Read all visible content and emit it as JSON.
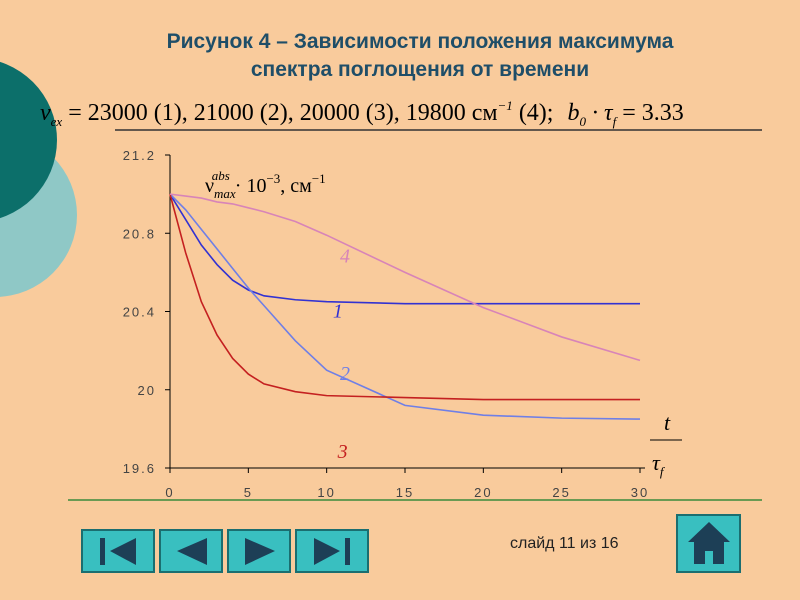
{
  "title_lines": [
    "Рисунок 4 – Зависимости положения максимума",
    "спектра поглощения от времени"
  ],
  "formula": {
    "lhs": "ν",
    "lhs_sub": "ex",
    "body": " = 23000 (1), 21000 (2), 20000 (3), 19800 см",
    "exp": "−1",
    "tail": " (4);",
    "b": "b",
    "b_sub": "0",
    "tau": " · τ",
    "tau_sub": "f",
    "rhs": " = 3.33"
  },
  "chart_data": {
    "type": "line",
    "y_label": {
      "symbol": "ν",
      "sub": "max",
      "sup": "abs",
      "factor": " · 10",
      "exp": "−3",
      "unit": ", см",
      "unit_exp": "−1"
    },
    "x_label": {
      "top": "t",
      "bottom": "τ",
      "bottom_sub": "f"
    },
    "x": [
      0,
      1,
      2,
      3,
      4,
      5,
      6,
      8,
      10,
      15,
      20,
      25,
      30
    ],
    "series": [
      {
        "name": "1",
        "color": "#3232d2",
        "values": [
          21.0,
          20.87,
          20.74,
          20.64,
          20.56,
          20.51,
          20.48,
          20.46,
          20.45,
          20.44,
          20.44,
          20.44,
          20.44
        ]
      },
      {
        "name": "2",
        "color": "#6f7fe6",
        "values": [
          21.0,
          20.92,
          20.82,
          20.72,
          20.62,
          20.52,
          20.43,
          20.25,
          20.1,
          19.92,
          19.87,
          19.855,
          19.85
        ]
      },
      {
        "name": "3",
        "color": "#c42020",
        "values": [
          21.0,
          20.7,
          20.45,
          20.28,
          20.16,
          20.08,
          20.03,
          19.99,
          19.97,
          19.96,
          19.95,
          19.95,
          19.95
        ]
      },
      {
        "name": "4",
        "color": "#d884b8",
        "values": [
          21.0,
          20.99,
          20.98,
          20.96,
          20.95,
          20.93,
          20.91,
          20.86,
          20.79,
          20.6,
          20.42,
          20.27,
          20.15
        ]
      }
    ],
    "xlim": [
      0,
      30
    ],
    "xticks": [
      0,
      5,
      10,
      15,
      20,
      25,
      30
    ],
    "ylim": [
      19.6,
      21.2
    ],
    "yticks": [
      19.6,
      20,
      20.4,
      20.8,
      21.2
    ]
  },
  "footer": "слайд 11 из 16"
}
